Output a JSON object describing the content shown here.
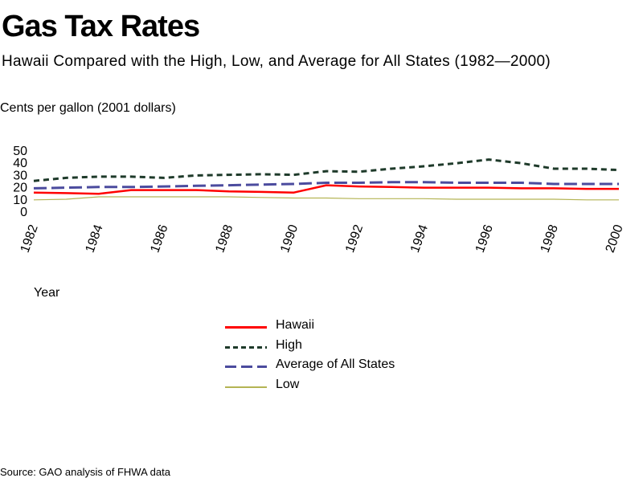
{
  "title": "Gas Tax Rates",
  "subtitle": "Hawaii Compared with the High, Low, and Average for All States (1982—2000)",
  "units_label": "Cents per gallon (2001 dollars)",
  "source": "Source: GAO analysis of FHWA data",
  "chart_data": {
    "type": "line",
    "title": "Gas Tax Rates",
    "subtitle": "Hawaii Compared with the High, Low, and Average for All States (1982—2000)",
    "ylabel": "Cents per gallon (2001 dollars)",
    "xlabel": "Year",
    "ylim": [
      0,
      50
    ],
    "yticks": [
      "50",
      "40",
      "30",
      "20",
      "10",
      "0"
    ],
    "xlim": [
      1982,
      2000
    ],
    "xticks": [
      "1982",
      "1984",
      "1986",
      "1988",
      "1990",
      "1992",
      "1994",
      "1996",
      "1998",
      "2000"
    ],
    "x": [
      1982,
      1983,
      1984,
      1985,
      1986,
      1987,
      1988,
      1989,
      1990,
      1991,
      1992,
      1993,
      1994,
      1995,
      1996,
      1997,
      1998,
      1999,
      2000
    ],
    "series": [
      {
        "name": "Hawaii",
        "color": "#ff0000",
        "style": "solid",
        "values": [
          16,
          15.5,
          15,
          18,
          18,
          18,
          17,
          16.5,
          16,
          22,
          21,
          20.5,
          20,
          20,
          20,
          19.5,
          19.5,
          19,
          19
        ]
      },
      {
        "name": "High",
        "color": "#1e3a2a",
        "style": "dotted",
        "values": [
          25.5,
          28,
          29,
          29,
          28,
          30,
          30.5,
          31,
          30.5,
          33.5,
          33,
          35.5,
          37.5,
          40,
          43,
          40,
          35.5,
          35.5,
          34.5
        ]
      },
      {
        "name": "Average of All States",
        "color": "#4b4b9e",
        "style": "dashed",
        "values": [
          19.5,
          20,
          20.5,
          20.5,
          21,
          21.5,
          22,
          22.5,
          23,
          24,
          24,
          24.5,
          24.5,
          24,
          24,
          24,
          23,
          23,
          23
        ]
      },
      {
        "name": "Low",
        "color": "#b4b454",
        "style": "solid",
        "values": [
          10,
          10.5,
          12.5,
          12.5,
          12.5,
          12.5,
          12.5,
          12,
          11.5,
          11.5,
          11,
          11,
          11,
          10.5,
          10.5,
          10.5,
          10.5,
          10,
          10
        ]
      }
    ],
    "legend": "below",
    "grid": false
  }
}
